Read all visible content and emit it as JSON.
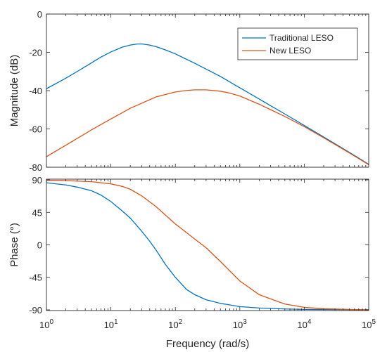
{
  "chart_data": [
    {
      "type": "line",
      "ylabel": "Magnitude (dB)",
      "xlabel": "",
      "xscale": "log",
      "xlim": [
        1,
        100000
      ],
      "ylim": [
        -80,
        0
      ],
      "yticks": [
        -80,
        -60,
        -40,
        -20,
        0
      ],
      "ytick_labels": [
        "-80",
        "-60",
        "-40",
        "-20",
        "0"
      ],
      "grid": false,
      "legend": "top-right",
      "series": [
        {
          "name": "Traditional LESO",
          "color": "#0072BD",
          "x": [
            1,
            2,
            3,
            5,
            7,
            10,
            15,
            20,
            25,
            30,
            40,
            50,
            70,
            100,
            200,
            500,
            1000,
            2000,
            5000,
            10000,
            20000,
            50000,
            100000
          ],
          "y": [
            -39,
            -33.5,
            -30,
            -25.5,
            -22.5,
            -19.8,
            -17.3,
            -16.2,
            -15.7,
            -15.6,
            -16.2,
            -17.0,
            -18.7,
            -20.8,
            -25.7,
            -32.6,
            -38.5,
            -44.4,
            -52.2,
            -58.2,
            -64.2,
            -72.2,
            -78.5
          ]
        },
        {
          "name": "New LESO",
          "color": "#D95319",
          "x": [
            1,
            2,
            5,
            10,
            20,
            50,
            100,
            150,
            200,
            300,
            500,
            700,
            1000,
            2000,
            5000,
            10000,
            20000,
            50000,
            100000
          ],
          "y": [
            -74.5,
            -68.5,
            -60.5,
            -54.8,
            -49.2,
            -43.3,
            -40.7,
            -39.9,
            -39.6,
            -39.6,
            -40.3,
            -41.3,
            -42.8,
            -47.1,
            -53.5,
            -58.8,
            -64.6,
            -72.5,
            -78.7
          ]
        }
      ]
    },
    {
      "type": "line",
      "ylabel": "Phase (°)",
      "xlabel": "Frequency  (rad/s)",
      "xscale": "log",
      "xlim": [
        1,
        100000
      ],
      "ylim": [
        -91,
        91
      ],
      "yticks": [
        -90,
        -45,
        0,
        45,
        90
      ],
      "ytick_labels": [
        "-90",
        "-45",
        "0",
        "45",
        "90"
      ],
      "xticks": [
        1,
        10,
        100,
        1000,
        10000,
        100000
      ],
      "xtick_labels": [
        [
          "10",
          "0"
        ],
        [
          "10",
          "1"
        ],
        [
          "10",
          "2"
        ],
        [
          "10",
          "3"
        ],
        [
          "10",
          "4"
        ],
        [
          "10",
          "5"
        ]
      ],
      "grid": false,
      "series": [
        {
          "name": "Traditional LESO",
          "color": "#0072BD",
          "x": [
            1,
            2,
            3,
            5,
            7,
            10,
            15,
            20,
            30,
            40,
            50,
            70,
            100,
            150,
            200,
            300,
            500,
            1000,
            2000,
            5000,
            10000,
            100000
          ],
          "y": [
            86,
            83,
            80,
            75,
            69,
            60,
            47,
            37,
            19,
            5,
            -7,
            -27,
            -45,
            -62,
            -69,
            -76,
            -81,
            -85.5,
            -87.5,
            -88.8,
            -89.4,
            -89.9
          ]
        },
        {
          "name": "New LESO",
          "color": "#D95319",
          "x": [
            1,
            2,
            5,
            10,
            15,
            20,
            30,
            50,
            100,
            200,
            300,
            500,
            1000,
            2000,
            5000,
            10000,
            20000,
            50000,
            100000
          ],
          "y": [
            89.5,
            89,
            87.5,
            84.5,
            81,
            77,
            68,
            53,
            29,
            8,
            -4,
            -23,
            -50,
            -69,
            -82,
            -86.5,
            -88.5,
            -89.5,
            -90
          ]
        }
      ]
    }
  ]
}
